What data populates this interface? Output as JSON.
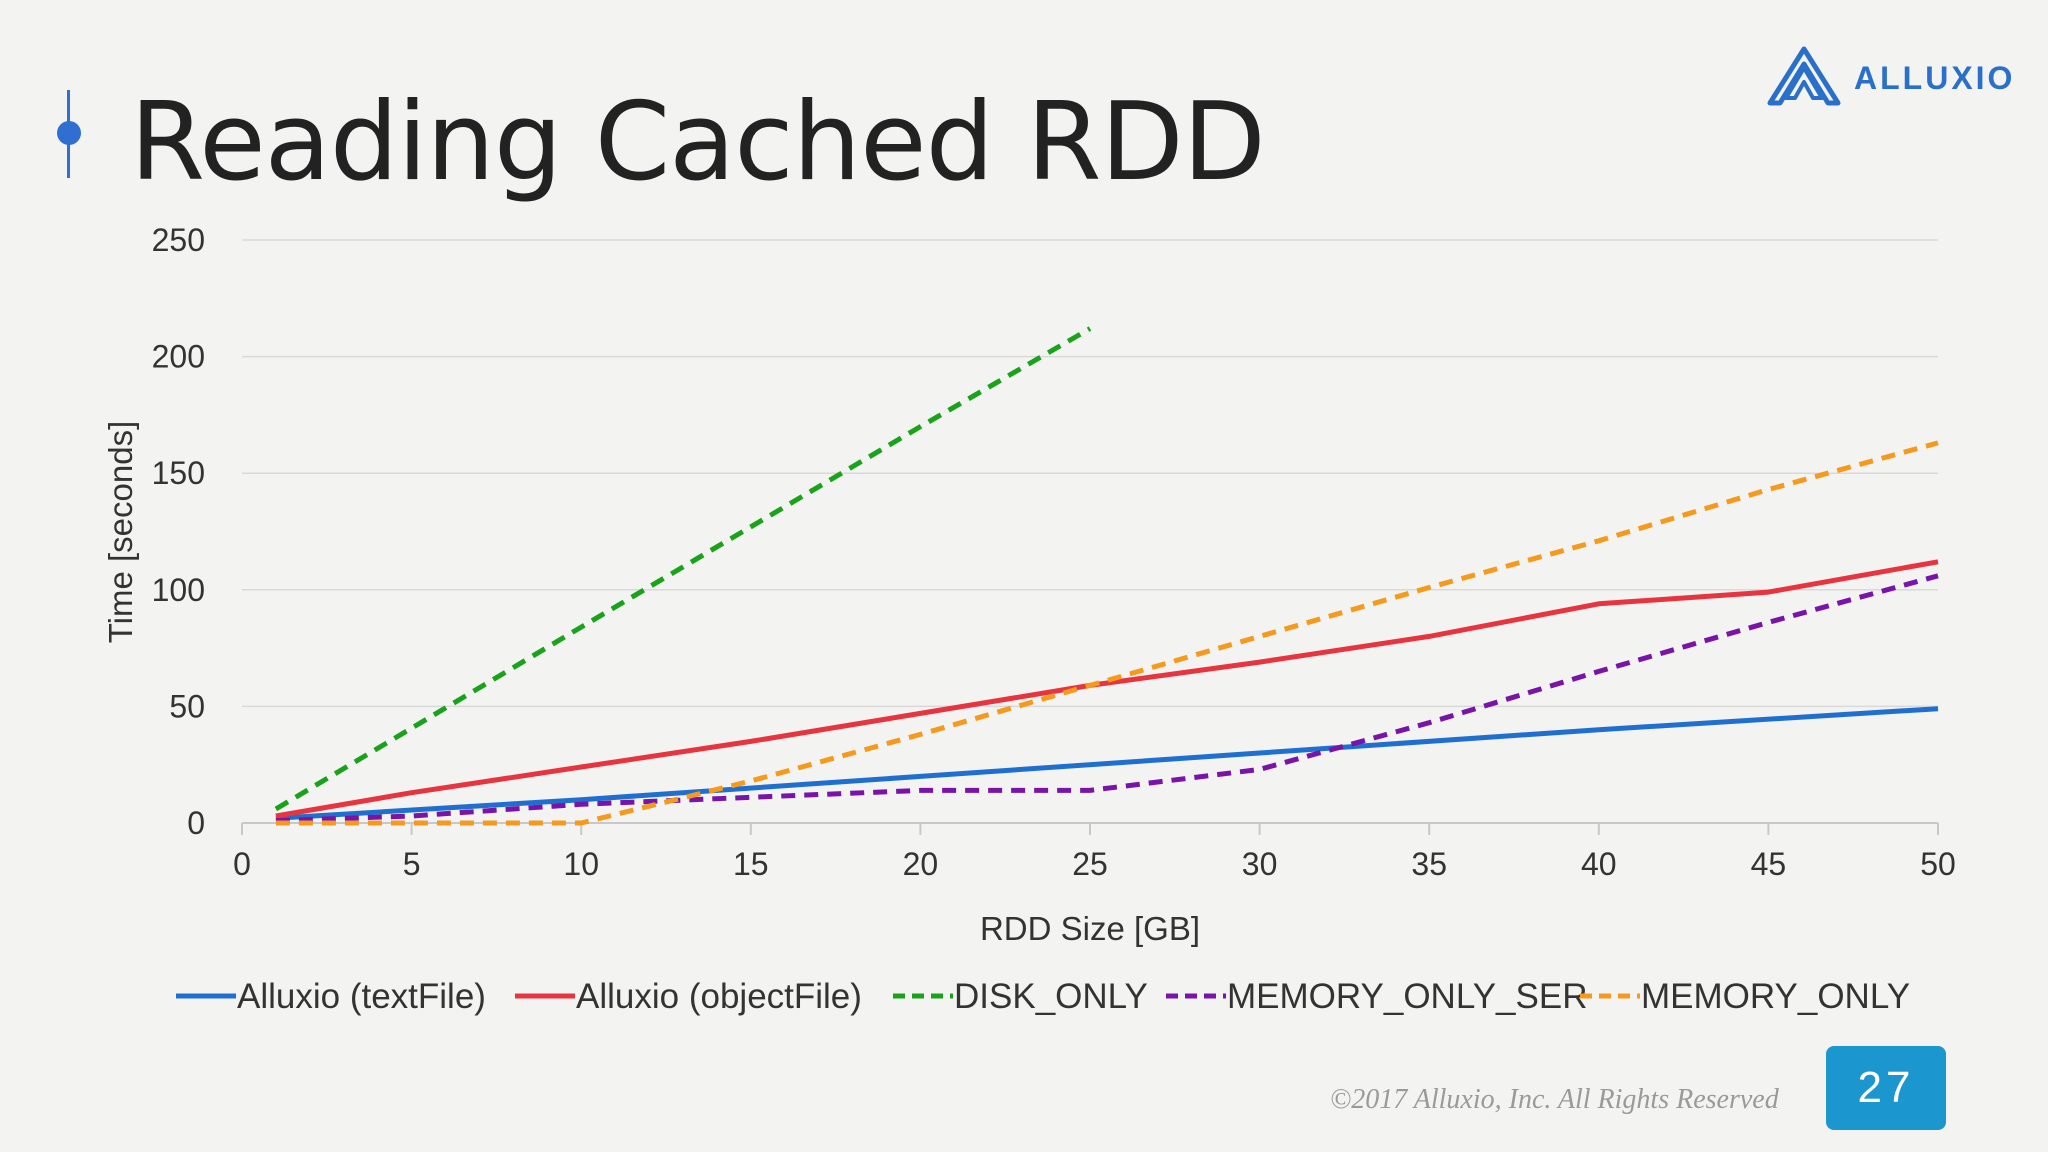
{
  "title": "Reading Cached RDD",
  "logo": {
    "text": "ALLUXIO",
    "color": "#2a6fc9"
  },
  "footer": {
    "copyright": "©2017 Alluxio, Inc. All Rights Reserved",
    "page_number": "27",
    "badge_color": "#1c96cf"
  },
  "chart_data": {
    "type": "line",
    "xlabel": "RDD Size [GB]",
    "ylabel": "Time [seconds]",
    "xlim": [
      0,
      50
    ],
    "ylim": [
      0,
      250
    ],
    "x_ticks": [
      0,
      5,
      10,
      15,
      20,
      25,
      30,
      35,
      40,
      45,
      50
    ],
    "y_ticks": [
      0,
      50,
      100,
      150,
      200,
      250
    ],
    "grid": "horizontal",
    "legend_position": "bottom",
    "series": [
      {
        "name": "Alluxio (textFile)",
        "color": "#1f6fd0",
        "dash": "solid",
        "x": [
          1,
          10,
          20,
          30,
          40,
          50
        ],
        "y": [
          2,
          10,
          20,
          30,
          40,
          49
        ]
      },
      {
        "name": "Alluxio (objectFile)",
        "color": "#e8343f",
        "dash": "solid",
        "x": [
          1,
          5,
          10,
          15,
          20,
          25,
          30,
          35,
          40,
          45,
          50
        ],
        "y": [
          3,
          13,
          24,
          35,
          47,
          59,
          69,
          80,
          94,
          99,
          112
        ]
      },
      {
        "name": "DISK_ONLY",
        "color": "#1aa31a",
        "dash": "dashed",
        "x": [
          1,
          10,
          20,
          25
        ],
        "y": [
          6,
          84,
          170,
          212
        ]
      },
      {
        "name": "MEMORY_ONLY_SER",
        "color": "#7a14a8",
        "dash": "dashed",
        "x": [
          1,
          5,
          10,
          15,
          20,
          25,
          30,
          35,
          40,
          45,
          50
        ],
        "y": [
          1,
          3,
          8,
          11,
          14,
          14,
          23,
          43,
          65,
          86,
          106
        ]
      },
      {
        "name": "MEMORY_ONLY",
        "color": "#f59a1c",
        "dash": "dashed",
        "x": [
          1,
          5,
          10,
          15,
          20,
          25,
          30,
          35,
          40,
          45,
          50
        ],
        "y": [
          0,
          0,
          0,
          18,
          38,
          59,
          80,
          101,
          121,
          143,
          163
        ]
      }
    ]
  }
}
